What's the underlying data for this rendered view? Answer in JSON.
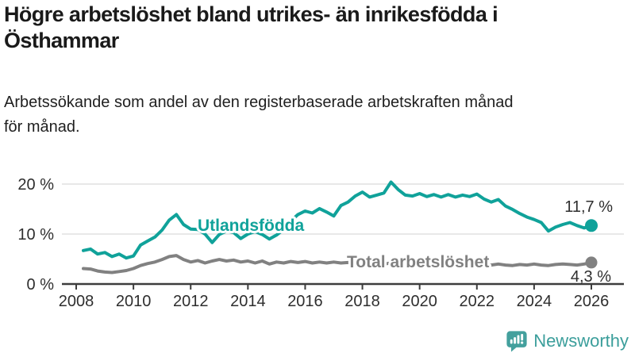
{
  "header": {
    "title": "Högre arbetslöshet bland utrikes- än inrikesfödda i Östhammar",
    "subtitle": "Arbetssökande som andel av den registerbaserade arbetskraften månad för månad."
  },
  "chart_data": {
    "type": "line",
    "title": "Högre arbetslöshet bland utrikes- än inrikesfödda i Östhammar",
    "xlabel": "",
    "ylabel": "",
    "unit": "%",
    "ylim": [
      0,
      22
    ],
    "xlim": [
      2007.5,
      2027
    ],
    "grid": "horizontal-only",
    "gridlines": [
      10,
      20
    ],
    "legend_position": "inline-labels",
    "yticks": [
      {
        "value": 0,
        "label": "0 %"
      },
      {
        "value": 10,
        "label": "10 %"
      },
      {
        "value": 20,
        "label": "20 %"
      }
    ],
    "xticks": [
      {
        "value": 2008,
        "label": "2008"
      },
      {
        "value": 2010,
        "label": "2010"
      },
      {
        "value": 2012,
        "label": "2012"
      },
      {
        "value": 2014,
        "label": "2014"
      },
      {
        "value": 2016,
        "label": "2016"
      },
      {
        "value": 2018,
        "label": "2018"
      },
      {
        "value": 2020,
        "label": "2020"
      },
      {
        "value": 2022,
        "label": "2022"
      },
      {
        "value": 2024,
        "label": "2024"
      },
      {
        "value": 2026,
        "label": "2026"
      }
    ],
    "x": [
      2008.25,
      2008.5,
      2008.75,
      2009,
      2009.25,
      2009.5,
      2009.75,
      2010,
      2010.25,
      2010.5,
      2010.75,
      2011,
      2011.25,
      2011.5,
      2011.75,
      2012,
      2012.25,
      2012.5,
      2012.75,
      2013,
      2013.25,
      2013.5,
      2013.75,
      2014,
      2014.25,
      2014.5,
      2014.75,
      2015,
      2015.25,
      2015.5,
      2015.75,
      2016,
      2016.25,
      2016.5,
      2016.75,
      2017,
      2017.25,
      2017.5,
      2017.75,
      2018,
      2018.25,
      2018.5,
      2018.75,
      2019,
      2019.25,
      2019.5,
      2019.75,
      2020,
      2020.25,
      2020.5,
      2020.75,
      2021,
      2021.25,
      2021.5,
      2021.75,
      2022,
      2022.25,
      2022.5,
      2022.75,
      2023,
      2023.25,
      2023.5,
      2023.75,
      2024,
      2024.25,
      2024.5,
      2024.75,
      2025,
      2025.25,
      2025.5,
      2025.75,
      2026
    ],
    "series": [
      {
        "name": "Utlandsfödda",
        "color": "#10a29a",
        "end_label": "11,7 %",
        "end_value": 11.7,
        "values": [
          6.7,
          7.0,
          6.0,
          6.3,
          5.5,
          6.0,
          5.2,
          5.6,
          7.8,
          8.6,
          9.4,
          10.8,
          12.8,
          13.9,
          11.9,
          11.0,
          10.9,
          10.0,
          8.3,
          9.9,
          10.6,
          10.3,
          9.1,
          10.0,
          10.5,
          9.9,
          9.0,
          9.8,
          10.9,
          12.6,
          13.9,
          14.6,
          14.2,
          15.1,
          14.4,
          13.6,
          15.7,
          16.4,
          17.6,
          18.4,
          17.4,
          17.8,
          18.2,
          20.4,
          18.9,
          17.8,
          17.6,
          18.1,
          17.5,
          17.9,
          17.4,
          17.9,
          17.4,
          17.8,
          17.5,
          18.0,
          17.0,
          16.4,
          16.9,
          15.6,
          14.9,
          14.1,
          13.4,
          12.9,
          12.3,
          10.6,
          11.4,
          11.9,
          12.3,
          11.7,
          11.2,
          11.7
        ]
      },
      {
        "name": "Total arbetslöshet",
        "color": "#818181",
        "end_label": "4,3 %",
        "end_value": 4.3,
        "values": [
          3.1,
          3.0,
          2.6,
          2.4,
          2.3,
          2.5,
          2.7,
          3.1,
          3.7,
          4.1,
          4.4,
          4.9,
          5.5,
          5.7,
          4.9,
          4.4,
          4.7,
          4.2,
          4.6,
          4.9,
          4.6,
          4.8,
          4.4,
          4.6,
          4.2,
          4.6,
          4.0,
          4.4,
          4.2,
          4.5,
          4.3,
          4.5,
          4.2,
          4.4,
          4.2,
          4.4,
          4.2,
          4.3,
          4.1,
          4.3,
          4.1,
          4.2,
          4.0,
          4.2,
          4.0,
          4.2,
          4.1,
          4.3,
          4.1,
          4.3,
          4.1,
          4.2,
          4.0,
          4.1,
          3.9,
          4.1,
          3.9,
          3.8,
          4.0,
          3.8,
          3.7,
          3.9,
          3.8,
          4.0,
          3.8,
          3.7,
          3.9,
          4.0,
          3.9,
          3.8,
          4.0,
          4.3
        ]
      }
    ]
  },
  "colors": {
    "accent_teal": "#10a29a",
    "series_gray": "#818181",
    "axis": "#3d3d3d",
    "grid": "#d9d9d9",
    "text": "#1a1a1a",
    "logo_teal": "#43a09d"
  },
  "footer": {
    "brand": "Newsworthy"
  }
}
